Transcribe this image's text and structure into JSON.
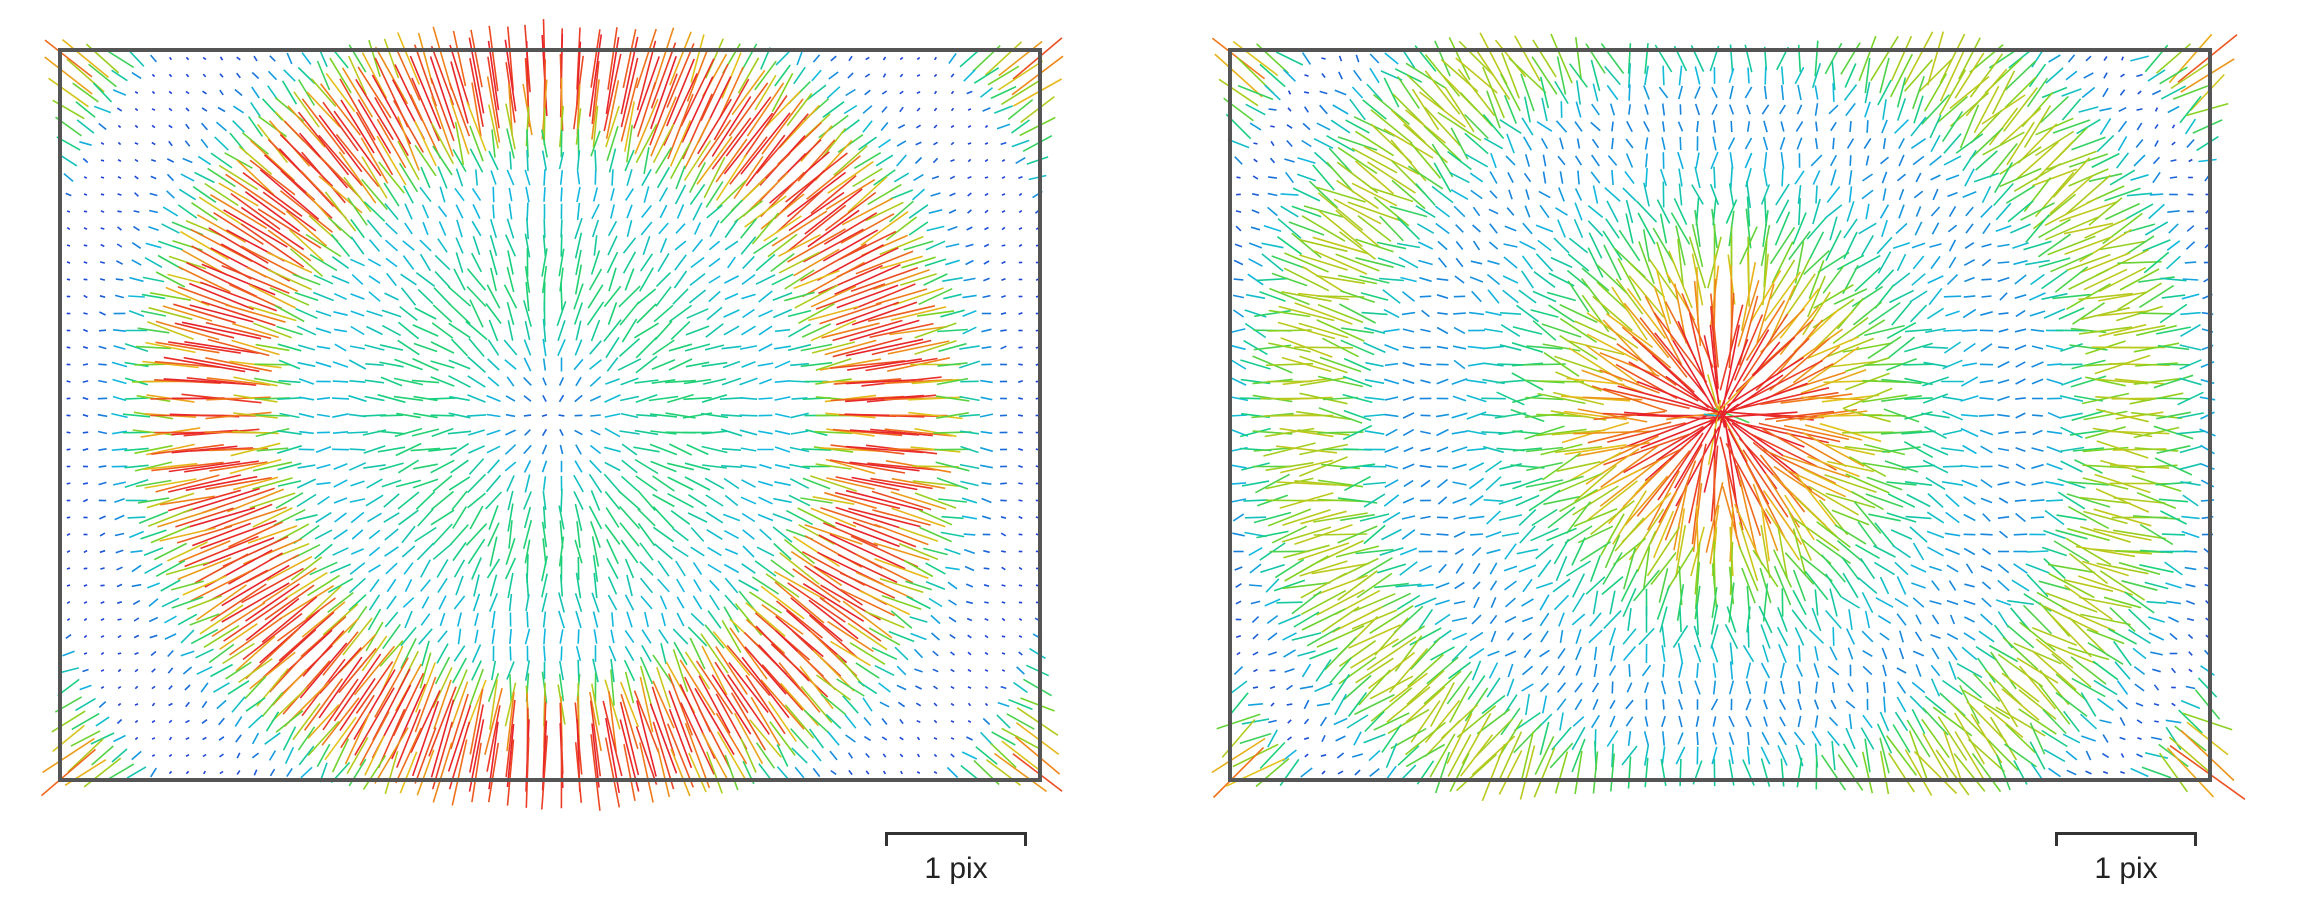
{
  "colors": {
    "frame": "#555555",
    "scale_bar": "#333333",
    "vector_ramp": [
      "#1f3fd6",
      "#12b8e0",
      "#19d07a",
      "#7ed321",
      "#e6c21a",
      "#f07a1a",
      "#e8222a"
    ]
  },
  "panels": [
    {
      "name": "left-residual-map",
      "pattern": "concentric-rings",
      "scale_bar": {
        "label": "1 pix"
      }
    },
    {
      "name": "right-residual-map",
      "pattern": "central-burst",
      "scale_bar": {
        "label": "1 pix"
      }
    }
  ]
}
